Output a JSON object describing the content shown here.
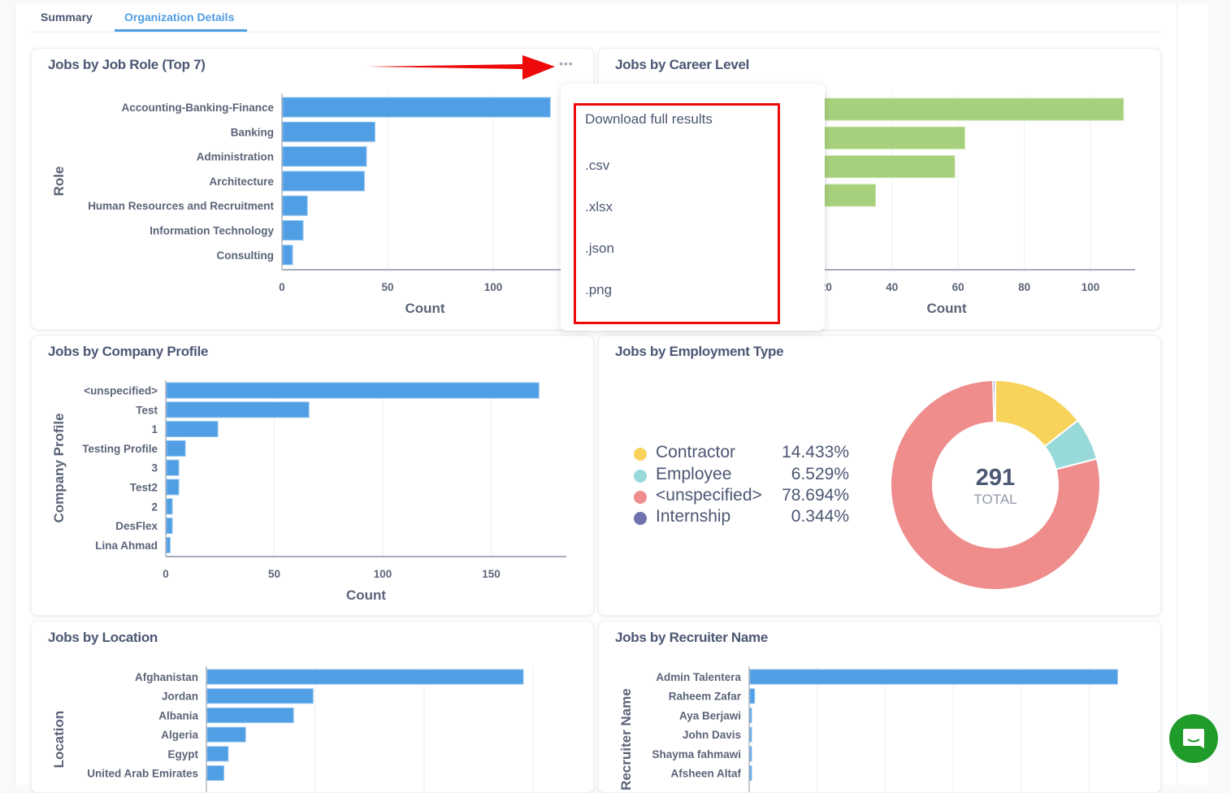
{
  "tabs": [
    {
      "label": "Summary",
      "active": false
    },
    {
      "label": "Organization Details",
      "active": true
    }
  ],
  "colors": {
    "accent": "#509ee3",
    "bar_blue": "#509ee3",
    "bar_green": "#a7d07c",
    "annotation_red": "#ee0a0a",
    "chat_green": "#209c2a"
  },
  "cards": {
    "job_role": {
      "title": "Jobs by Job Role (Top 7)",
      "menu_icon": "ellipsis-icon"
    },
    "career_level": {
      "title": "Jobs by Career Level"
    },
    "company_profile": {
      "title": "Jobs by Company Profile"
    },
    "employment_type": {
      "title": "Jobs by Employment Type",
      "total_value": "291",
      "total_label": "TOTAL"
    },
    "location": {
      "title": "Jobs by Location"
    },
    "recruiter": {
      "title": "Jobs by Recruiter Name"
    }
  },
  "download_menu": {
    "heading": "Download full results",
    "options": [
      ".csv",
      ".xlsx",
      ".json",
      ".png"
    ]
  },
  "chat_button": {
    "icon": "chat-bubble-icon"
  },
  "chart_data": [
    {
      "id": "job_role",
      "type": "bar",
      "orientation": "horizontal",
      "title": "Jobs by Job Role (Top 7)",
      "xlabel": "Count",
      "ylabel": "Role",
      "categories": [
        "Accounting-Banking-Finance",
        "Banking",
        "Administration",
        "Architecture",
        "Human Resources and Recruitment",
        "Information Technology",
        "Consulting"
      ],
      "values": [
        127,
        44,
        40,
        39,
        12,
        10,
        5
      ],
      "xticks": [
        "0",
        "50",
        "100"
      ],
      "xlim": [
        0,
        135
      ],
      "grid": true
    },
    {
      "id": "career_level",
      "type": "bar",
      "orientation": "horizontal",
      "title": "Jobs by Career Level",
      "xlabel": "Count",
      "values": [
        110,
        62,
        59,
        35
      ],
      "xticks": [
        "20",
        "40",
        "60",
        "80",
        "100"
      ],
      "xlim": [
        0,
        114
      ],
      "grid": true
    },
    {
      "id": "company_profile",
      "type": "bar",
      "orientation": "horizontal",
      "title": "Jobs by Company Profile",
      "xlabel": "Count",
      "ylabel": "Company Profile",
      "categories": [
        "<unspecified>",
        "Test",
        "1",
        "Testing Profile",
        "3",
        "Test2",
        "2",
        "DesFlex",
        "Lina Ahmad"
      ],
      "values": [
        172,
        66,
        24,
        9,
        6,
        6,
        3,
        3,
        2
      ],
      "xticks": [
        "0",
        "50",
        "100",
        "150"
      ],
      "xlim": [
        0,
        185
      ],
      "grid": true
    },
    {
      "id": "employment_type",
      "type": "pie",
      "title": "Jobs by Employment Type",
      "categories": [
        "Contractor",
        "Employee",
        "<unspecified>",
        "Internship"
      ],
      "percentages": [
        "14.433%",
        "6.529%",
        "78.694%",
        "0.344%"
      ],
      "values": [
        14.433,
        6.529,
        78.694,
        0.344
      ],
      "colors": [
        "#f7d35c",
        "#98d9d9",
        "#ef8c8c",
        "#7172ad"
      ],
      "total": 291
    },
    {
      "id": "location",
      "type": "bar",
      "orientation": "horizontal",
      "title": "Jobs by Location",
      "ylabel": "Location",
      "categories": [
        "Afghanistan",
        "Jordan",
        "Albania",
        "Algeria",
        "Egypt",
        "United Arab Emirates"
      ],
      "values": [
        2.91,
        0.98,
        0.8,
        0.36,
        0.2,
        0.16
      ],
      "value_units": "gridline intervals (tick labels not visible)",
      "xlim": [
        0,
        3.06
      ],
      "grid": true
    },
    {
      "id": "recruiter",
      "type": "bar",
      "orientation": "horizontal",
      "title": "Jobs by Recruiter Name",
      "ylabel": "Recruiter Name",
      "categories": [
        "Admin Talentera",
        "Raheem Zafar",
        "Aya Berjawi",
        "John Davis",
        "Shayma fahmawi",
        "Afsheen Altaf"
      ],
      "values": [
        5.41,
        0.08,
        0.03,
        0.03,
        0.03,
        0.02
      ],
      "value_units": "gridline intervals (tick labels not visible)",
      "xlim": [
        0,
        5.6
      ],
      "grid": true
    }
  ]
}
